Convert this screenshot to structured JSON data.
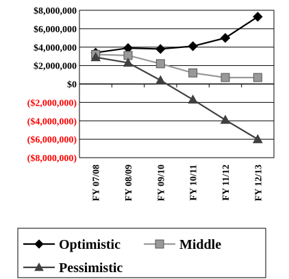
{
  "chart_data": {
    "type": "line",
    "categories": [
      "FY 07/08",
      "FY 08/09",
      "FY 09/10",
      "FY 10/11",
      "FY 11/12",
      "FY 12/13"
    ],
    "series": [
      {
        "name": "Optimistic",
        "values": [
          3400000,
          3900000,
          3800000,
          4100000,
          5000000,
          7300000
        ],
        "marker": "diamond",
        "color": "#000000"
      },
      {
        "name": "Middle",
        "values": [
          3200000,
          3100000,
          2200000,
          1200000,
          700000,
          700000
        ],
        "marker": "square",
        "color": "#999999"
      },
      {
        "name": "Pessimistic",
        "values": [
          2900000,
          2300000,
          400000,
          -1700000,
          -3900000,
          -6000000
        ],
        "marker": "triangle",
        "color": "#404040"
      }
    ],
    "y_ticks": [
      {
        "value": 8000000,
        "label": "$8,000,000",
        "color": "#000000"
      },
      {
        "value": 6000000,
        "label": "$6,000,000",
        "color": "#000000"
      },
      {
        "value": 4000000,
        "label": "$4,000,000",
        "color": "#000000"
      },
      {
        "value": 2000000,
        "label": "$2,000,000",
        "color": "#000000"
      },
      {
        "value": 0,
        "label": "$0",
        "color": "#000000"
      },
      {
        "value": -2000000,
        "label": "($2,000,000)",
        "color": "#ff0000"
      },
      {
        "value": -4000000,
        "label": "($4,000,000)",
        "color": "#ff0000"
      },
      {
        "value": -6000000,
        "label": "($6,000,000)",
        "color": "#ff0000"
      },
      {
        "value": -8000000,
        "label": "($8,000,000)",
        "color": "#ff0000"
      }
    ],
    "ylim": [
      -8000000,
      8000000
    ],
    "grid": true,
    "legend_position": "bottom",
    "title": "",
    "xlabel": "",
    "ylabel": ""
  }
}
